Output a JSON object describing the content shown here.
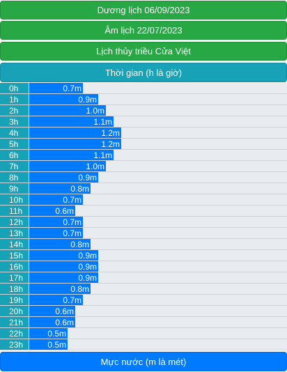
{
  "buttons": {
    "solar_date": "Dương lịch 06/09/2023",
    "lunar_date": "Âm lịch 22/07/2023",
    "tide_schedule": "Lịch thủy triều Cửa Việt",
    "time_header": "Thời gian (h là giờ)",
    "level_footer": "Mực nước (m là mét)"
  },
  "colors": {
    "green": "#28a745",
    "teal": "#17a2b8",
    "blue": "#007bff",
    "row_bg": "#e9ecef"
  },
  "chart_data": {
    "type": "bar",
    "orientation": "horizontal",
    "categories": [
      "0h",
      "1h",
      "2h",
      "3h",
      "4h",
      "5h",
      "6h",
      "7h",
      "8h",
      "9h",
      "10h",
      "11h",
      "12h",
      "13h",
      "14h",
      "15h",
      "16h",
      "17h",
      "18h",
      "19h",
      "20h",
      "21h",
      "22h",
      "23h"
    ],
    "values": [
      0.7,
      0.9,
      1.0,
      1.1,
      1.2,
      1.2,
      1.1,
      1.0,
      0.9,
      0.8,
      0.7,
      0.6,
      0.7,
      0.7,
      0.8,
      0.9,
      0.9,
      0.9,
      0.8,
      0.7,
      0.6,
      0.6,
      0.5,
      0.5
    ],
    "labels": [
      "0.7m",
      "0.9m",
      "1.0m",
      "1.1m",
      "1.2m",
      "1.2m",
      "1.1m",
      "1.0m",
      "0.9m",
      "0.8m",
      "0.7m",
      "0.6m",
      "0.7m",
      "0.7m",
      "0.8m",
      "0.9m",
      "0.9m",
      "0.9m",
      "0.8m",
      "0.7m",
      "0.6m",
      "0.6m",
      "0.5m",
      "0.5m"
    ],
    "unit": "m"
  }
}
